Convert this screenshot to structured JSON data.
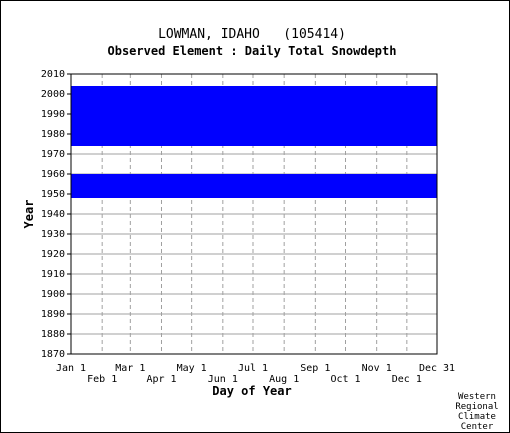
{
  "chart_data": {
    "type": "heatmap",
    "title": "LOWMAN, IDAHO   (105414)",
    "subtitle": "Observed Element : Daily Total Snowdepth",
    "xlabel": "Day of Year",
    "ylabel": "Year",
    "xlim": [
      1,
      365
    ],
    "ylim": [
      1870,
      2010
    ],
    "grid": true,
    "y_ticks": [
      2010,
      2000,
      1990,
      1980,
      1970,
      1960,
      1950,
      1940,
      1930,
      1920,
      1910,
      1900,
      1890,
      1880,
      1870
    ],
    "x_ticks_top": [
      {
        "label": "Jan 1",
        "day": 1
      },
      {
        "label": "Mar 1",
        "day": 60
      },
      {
        "label": "May 1",
        "day": 121
      },
      {
        "label": "Jul 1",
        "day": 182
      },
      {
        "label": "Sep 1",
        "day": 244
      },
      {
        "label": "Nov 1",
        "day": 305
      },
      {
        "label": "Dec 31",
        "day": 365
      }
    ],
    "x_ticks_bottom": [
      {
        "label": "Feb 1",
        "day": 32
      },
      {
        "label": "Apr 1",
        "day": 91
      },
      {
        "label": "Jun 1",
        "day": 152
      },
      {
        "label": "Aug 1",
        "day": 213
      },
      {
        "label": "Oct 1",
        "day": 274
      },
      {
        "label": "Dec 1",
        "day": 335
      }
    ],
    "data_color": "#0000ff",
    "coverage": [
      {
        "years": [
          1948,
          1960
        ],
        "days": [
          1,
          365
        ],
        "status": "observed"
      },
      {
        "years": [
          1974,
          2004
        ],
        "days": [
          1,
          365
        ],
        "status": "observed"
      }
    ]
  },
  "credit": [
    "Western",
    "Regional",
    "Climate",
    "Center"
  ]
}
